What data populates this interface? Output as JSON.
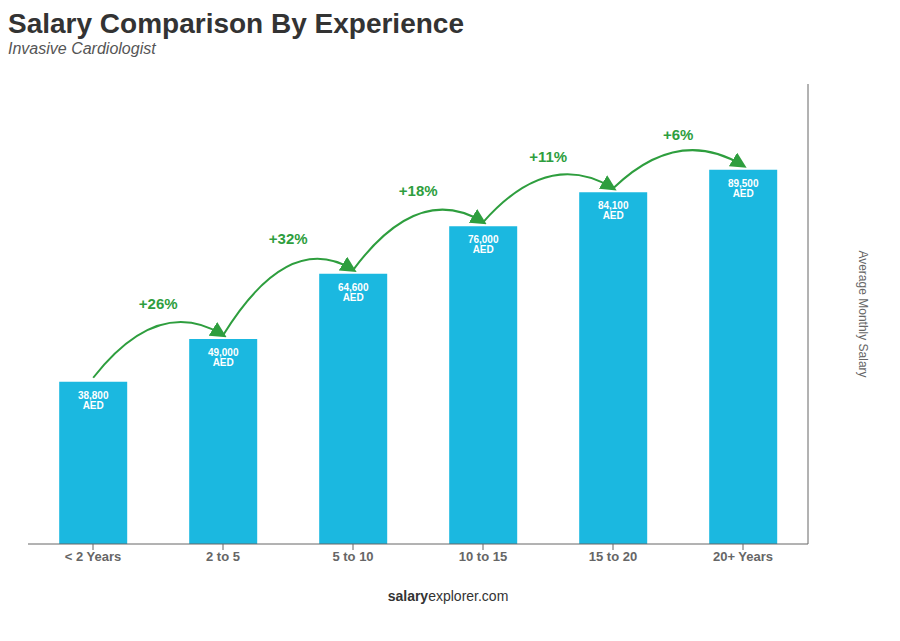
{
  "chart_data": {
    "type": "bar",
    "title": "Salary Comparison By Experience",
    "subtitle": "Invasive Cardiologist",
    "ylabel": "Average Monthly Salary",
    "footer_bold": "salary",
    "footer_normal": "explorer.com",
    "categories": [
      "< 2 Years",
      "2 to 5",
      "5 to 10",
      "10 to 15",
      "15 to 20",
      "20+ Years"
    ],
    "values": [
      38800,
      49000,
      64600,
      76000,
      84100,
      89500
    ],
    "value_labels": [
      "38,800 AED",
      "49,000 AED",
      "64,600 AED",
      "76,000 AED",
      "84,100 AED",
      "89,500 AED"
    ],
    "data_labels": true,
    "annotations": [
      "+26%",
      "+32%",
      "+18%",
      "+11%",
      "+6%"
    ],
    "color": "#1BB8E0",
    "ylim": [
      0,
      110000
    ],
    "tick_labels": "x",
    "grid": false
  }
}
